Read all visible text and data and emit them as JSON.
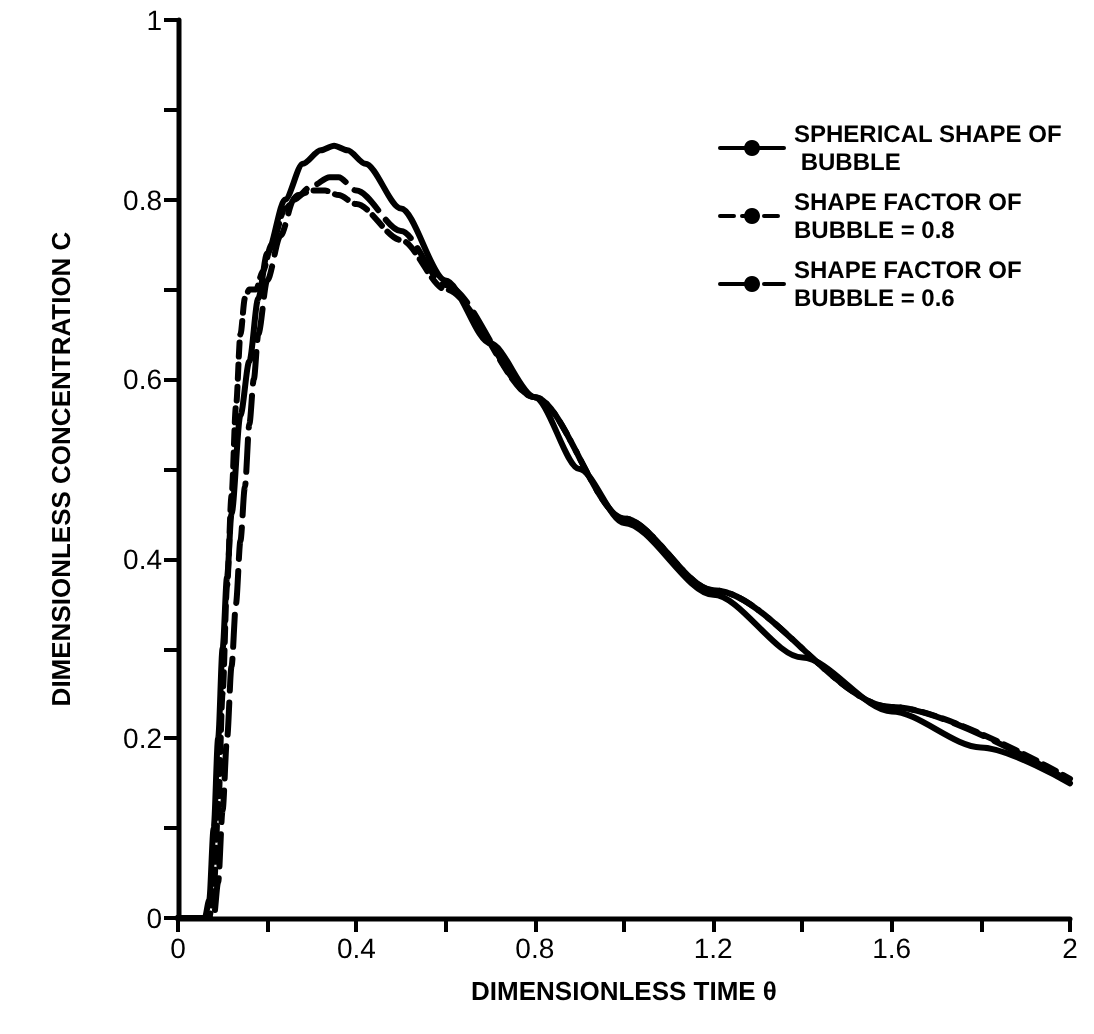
{
  "chart_data": {
    "type": "line",
    "xlabel": "DIMENSIONLESS TIME θ",
    "ylabel": "DIMENSIONLESS CONCENTRATION C",
    "xlim": [
      0,
      2
    ],
    "xticks": [
      0,
      {
        "value": 0.2,
        "label": null
      },
      0.4,
      {
        "value": 0.6,
        "label": null
      },
      0.8,
      {
        "value": 1.0,
        "label": null
      },
      1.2,
      {
        "value": 1.4,
        "label": null
      },
      1.6,
      {
        "value": 1.8,
        "label": null
      },
      2
    ],
    "ylim": [
      0,
      1
    ],
    "yticks": [
      0,
      {
        "value": 0.1,
        "label": null
      },
      0.2,
      {
        "value": 0.3,
        "label": null
      },
      0.4,
      {
        "value": 0.5,
        "label": null
      },
      0.6,
      {
        "value": 0.7,
        "label": null
      },
      0.8,
      {
        "value": 0.9,
        "label": null
      },
      1
    ],
    "grid": false,
    "legend": "top right",
    "marker": "none",
    "series": [
      {
        "name": "SPHERICAL SHAPE OF BUBBLE",
        "color": "#000000",
        "line_style": "solid",
        "x": [
          0,
          0.06,
          0.07,
          0.08,
          0.09,
          0.1,
          0.11,
          0.12,
          0.14,
          0.16,
          0.18,
          0.2,
          0.24,
          0.28,
          0.32,
          0.35,
          0.38,
          0.42,
          0.5,
          0.6,
          0.7,
          0.8,
          0.9,
          1.0,
          1.2,
          1.4,
          1.6,
          1.8,
          2
        ],
        "values": [
          0,
          0,
          0.02,
          0.1,
          0.2,
          0.3,
          0.38,
          0.45,
          0.56,
          0.62,
          0.69,
          0.74,
          0.8,
          0.84,
          0.855,
          0.86,
          0.855,
          0.84,
          0.79,
          0.71,
          0.64,
          0.58,
          0.5,
          0.44,
          0.36,
          0.29,
          0.23,
          0.19,
          0.15
        ]
      },
      {
        "name": "SHAPE FACTOR OF BUBBLE = 0.8",
        "color": "#000000",
        "line_style": "dashed",
        "x": [
          0,
          0.07,
          0.08,
          0.09,
          0.1,
          0.11,
          0.12,
          0.13,
          0.14,
          0.15,
          0.16,
          0.175,
          0.19,
          0.21,
          0.24,
          0.27,
          0.3,
          0.33,
          0.36,
          0.4,
          0.5,
          0.6,
          0.8,
          1.0,
          1.2,
          1.6,
          2
        ],
        "values": [
          0,
          0,
          0.03,
          0.12,
          0.25,
          0.37,
          0.47,
          0.57,
          0.65,
          0.69,
          0.7,
          0.7,
          0.72,
          0.75,
          0.79,
          0.805,
          0.81,
          0.81,
          0.805,
          0.795,
          0.755,
          0.7,
          0.58,
          0.445,
          0.365,
          0.235,
          0.155
        ]
      },
      {
        "name": "SHAPE FACTOR OF BUBBLE = 0.6",
        "color": "#000000",
        "line_style": "dashed",
        "x": [
          0,
          0.08,
          0.09,
          0.1,
          0.11,
          0.12,
          0.13,
          0.14,
          0.15,
          0.16,
          0.17,
          0.18,
          0.2,
          0.23,
          0.26,
          0.3,
          0.34,
          0.36,
          0.4,
          0.5,
          0.6,
          0.8,
          1.0,
          1.2,
          1.6,
          2
        ],
        "values": [
          0,
          0,
          0.04,
          0.12,
          0.2,
          0.28,
          0.35,
          0.42,
          0.48,
          0.55,
          0.6,
          0.65,
          0.71,
          0.76,
          0.8,
          0.815,
          0.825,
          0.825,
          0.81,
          0.765,
          0.705,
          0.58,
          0.445,
          0.365,
          0.235,
          0.152
        ]
      }
    ]
  }
}
